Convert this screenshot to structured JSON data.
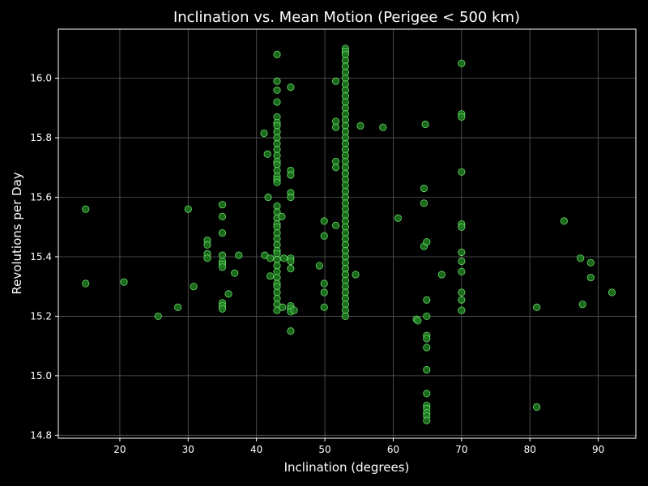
{
  "chart_data": {
    "type": "scatter",
    "title": "Inclination vs. Mean Motion (Perigee < 500 km)",
    "xlabel": "Inclination (degrees)",
    "ylabel": "Revolutions per Day",
    "xlim": [
      11,
      95.5
    ],
    "ylim": [
      14.79,
      16.165
    ],
    "xticks": [
      20,
      30,
      40,
      50,
      60,
      70,
      80,
      90
    ],
    "yticks": [
      14.8,
      15.0,
      15.2,
      15.4,
      15.6,
      15.8,
      16.0
    ],
    "ytick_labels": [
      "14.8",
      "15.0",
      "15.2",
      "15.4",
      "15.6",
      "15.8",
      "16.0"
    ],
    "grid": true,
    "colors": {
      "background": "#000000",
      "marker_fill": "#1f7a1f",
      "marker_edge": "#7dff7d",
      "grid": "#5a5a5a",
      "axes": "#ffffff"
    },
    "points": [
      [
        15.0,
        15.56
      ],
      [
        15.0,
        15.31
      ],
      [
        20.6,
        15.315
      ],
      [
        25.6,
        15.2
      ],
      [
        28.5,
        15.23
      ],
      [
        30.0,
        15.56
      ],
      [
        30.8,
        15.3
      ],
      [
        32.8,
        15.455
      ],
      [
        32.8,
        15.44
      ],
      [
        32.8,
        15.41
      ],
      [
        32.8,
        15.395
      ],
      [
        35.0,
        15.575
      ],
      [
        35.0,
        15.535
      ],
      [
        35.0,
        15.48
      ],
      [
        35.0,
        15.405
      ],
      [
        35.0,
        15.385
      ],
      [
        35.0,
        15.375
      ],
      [
        35.0,
        15.365
      ],
      [
        35.0,
        15.245
      ],
      [
        35.0,
        15.235
      ],
      [
        35.0,
        15.225
      ],
      [
        35.9,
        15.275
      ],
      [
        36.8,
        15.345
      ],
      [
        37.4,
        15.405
      ],
      [
        41.1,
        15.815
      ],
      [
        41.2,
        15.405
      ],
      [
        41.6,
        15.745
      ],
      [
        41.7,
        15.6
      ],
      [
        42.0,
        15.395
      ],
      [
        42.0,
        15.335
      ],
      [
        43.0,
        16.08
      ],
      [
        43.0,
        15.99
      ],
      [
        43.0,
        15.96
      ],
      [
        43.0,
        15.92
      ],
      [
        43.0,
        15.87
      ],
      [
        43.0,
        15.85
      ],
      [
        43.0,
        15.84
      ],
      [
        43.0,
        15.82
      ],
      [
        43.0,
        15.8
      ],
      [
        43.0,
        15.78
      ],
      [
        43.0,
        15.76
      ],
      [
        43.0,
        15.74
      ],
      [
        43.0,
        15.72
      ],
      [
        43.0,
        15.71
      ],
      [
        43.0,
        15.69
      ],
      [
        43.0,
        15.67
      ],
      [
        43.0,
        15.66
      ],
      [
        43.0,
        15.65
      ],
      [
        43.0,
        15.57
      ],
      [
        43.0,
        15.55
      ],
      [
        43.0,
        15.53
      ],
      [
        43.0,
        15.51
      ],
      [
        43.0,
        15.5
      ],
      [
        43.0,
        15.48
      ],
      [
        43.0,
        15.46
      ],
      [
        43.0,
        15.44
      ],
      [
        43.0,
        15.42
      ],
      [
        43.0,
        15.41
      ],
      [
        43.0,
        15.39
      ],
      [
        43.0,
        15.37
      ],
      [
        43.0,
        15.35
      ],
      [
        43.0,
        15.33
      ],
      [
        43.0,
        15.31
      ],
      [
        43.0,
        15.3
      ],
      [
        43.0,
        15.28
      ],
      [
        43.0,
        15.26
      ],
      [
        43.0,
        15.24
      ],
      [
        43.0,
        15.22
      ],
      [
        43.7,
        15.535
      ],
      [
        43.8,
        15.23
      ],
      [
        44.0,
        15.395
      ],
      [
        45.0,
        15.97
      ],
      [
        45.0,
        15.69
      ],
      [
        45.0,
        15.675
      ],
      [
        45.0,
        15.615
      ],
      [
        45.0,
        15.6
      ],
      [
        45.0,
        15.395
      ],
      [
        45.0,
        15.385
      ],
      [
        45.0,
        15.36
      ],
      [
        45.0,
        15.235
      ],
      [
        45.0,
        15.225
      ],
      [
        45.0,
        15.215
      ],
      [
        45.0,
        15.15
      ],
      [
        45.5,
        15.22
      ],
      [
        49.2,
        15.37
      ],
      [
        49.9,
        15.52
      ],
      [
        49.9,
        15.47
      ],
      [
        49.9,
        15.31
      ],
      [
        49.9,
        15.28
      ],
      [
        49.9,
        15.23
      ],
      [
        51.6,
        15.99
      ],
      [
        51.6,
        15.855
      ],
      [
        51.6,
        15.835
      ],
      [
        51.6,
        15.72
      ],
      [
        51.6,
        15.7
      ],
      [
        51.6,
        15.505
      ],
      [
        53.0,
        16.1
      ],
      [
        53.0,
        16.09
      ],
      [
        53.0,
        16.08
      ],
      [
        53.0,
        16.06
      ],
      [
        53.0,
        16.04
      ],
      [
        53.0,
        16.02
      ],
      [
        53.0,
        16.0
      ],
      [
        53.0,
        15.98
      ],
      [
        53.0,
        15.96
      ],
      [
        53.0,
        15.94
      ],
      [
        53.0,
        15.92
      ],
      [
        53.0,
        15.9
      ],
      [
        53.0,
        15.88
      ],
      [
        53.0,
        15.86
      ],
      [
        53.0,
        15.84
      ],
      [
        53.0,
        15.82
      ],
      [
        53.0,
        15.8
      ],
      [
        53.0,
        15.78
      ],
      [
        53.0,
        15.76
      ],
      [
        53.0,
        15.74
      ],
      [
        53.0,
        15.72
      ],
      [
        53.0,
        15.7
      ],
      [
        53.0,
        15.68
      ],
      [
        53.0,
        15.66
      ],
      [
        53.0,
        15.64
      ],
      [
        53.0,
        15.62
      ],
      [
        53.0,
        15.6
      ],
      [
        53.0,
        15.58
      ],
      [
        53.0,
        15.56
      ],
      [
        53.0,
        15.54
      ],
      [
        53.0,
        15.52
      ],
      [
        53.0,
        15.5
      ],
      [
        53.0,
        15.48
      ],
      [
        53.0,
        15.46
      ],
      [
        53.0,
        15.44
      ],
      [
        53.0,
        15.42
      ],
      [
        53.0,
        15.4
      ],
      [
        53.0,
        15.38
      ],
      [
        53.0,
        15.36
      ],
      [
        53.0,
        15.34
      ],
      [
        53.0,
        15.32
      ],
      [
        53.0,
        15.3
      ],
      [
        53.0,
        15.28
      ],
      [
        53.0,
        15.26
      ],
      [
        53.0,
        15.24
      ],
      [
        53.0,
        15.22
      ],
      [
        53.0,
        15.2
      ],
      [
        54.5,
        15.34
      ],
      [
        55.2,
        15.84
      ],
      [
        58.5,
        15.835
      ],
      [
        60.7,
        15.53
      ],
      [
        63.4,
        15.19
      ],
      [
        63.6,
        15.185
      ],
      [
        64.5,
        15.63
      ],
      [
        64.5,
        15.58
      ],
      [
        64.5,
        15.435
      ],
      [
        64.7,
        15.845
      ],
      [
        64.9,
        15.45
      ],
      [
        64.9,
        15.255
      ],
      [
        64.9,
        15.2
      ],
      [
        64.9,
        15.135
      ],
      [
        64.9,
        15.125
      ],
      [
        64.9,
        15.095
      ],
      [
        64.9,
        15.02
      ],
      [
        64.9,
        14.94
      ],
      [
        64.9,
        14.9
      ],
      [
        64.9,
        14.89
      ],
      [
        64.9,
        14.875
      ],
      [
        64.9,
        14.865
      ],
      [
        64.9,
        14.85
      ],
      [
        67.1,
        15.34
      ],
      [
        70.0,
        16.05
      ],
      [
        70.0,
        15.88
      ],
      [
        70.0,
        15.87
      ],
      [
        70.0,
        15.685
      ],
      [
        70.0,
        15.51
      ],
      [
        70.0,
        15.5
      ],
      [
        70.0,
        15.415
      ],
      [
        70.0,
        15.385
      ],
      [
        70.0,
        15.35
      ],
      [
        70.0,
        15.28
      ],
      [
        70.0,
        15.255
      ],
      [
        70.0,
        15.22
      ],
      [
        81.0,
        15.23
      ],
      [
        81.0,
        14.895
      ],
      [
        85.0,
        15.52
      ],
      [
        87.4,
        15.395
      ],
      [
        87.7,
        15.24
      ],
      [
        88.9,
        15.38
      ],
      [
        88.9,
        15.33
      ],
      [
        92.0,
        15.28
      ]
    ]
  }
}
